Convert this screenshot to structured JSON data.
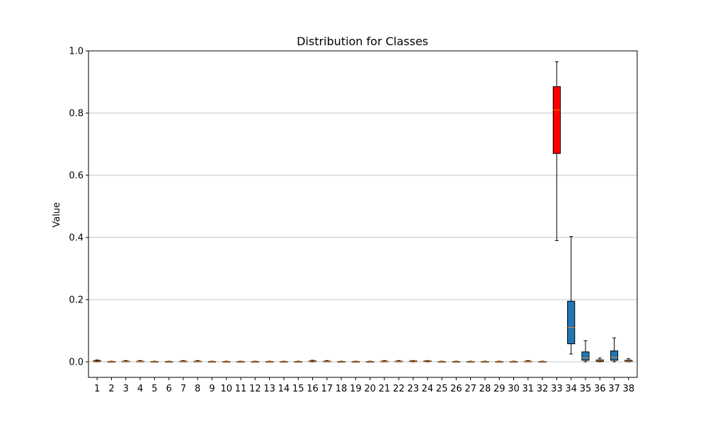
{
  "chart_data": {
    "type": "box",
    "title": "Distribution for Classes",
    "xlabel": "",
    "ylabel": "Value",
    "ylim": [
      -0.05,
      1.0
    ],
    "yticks": [
      0.0,
      0.2,
      0.4,
      0.6,
      0.8,
      1.0
    ],
    "y_grid": true,
    "highlight_color": "#ff0000",
    "box_color": "#1f77b4",
    "median_color": "#ff7f0e",
    "categories": [
      "1",
      "2",
      "3",
      "4",
      "5",
      "6",
      "7",
      "8",
      "9",
      "10",
      "11",
      "12",
      "13",
      "14",
      "15",
      "16",
      "17",
      "18",
      "19",
      "20",
      "21",
      "22",
      "23",
      "24",
      "25",
      "26",
      "27",
      "28",
      "29",
      "30",
      "31",
      "32",
      "33",
      "34",
      "35",
      "36",
      "37",
      "38"
    ],
    "boxes": [
      {
        "min": 0.0,
        "q1": 0.001,
        "median": 0.002,
        "q3": 0.004,
        "max": 0.006
      },
      {
        "min": 0.0,
        "q1": 0.0,
        "median": 0.0005,
        "q3": 0.001,
        "max": 0.002
      },
      {
        "min": 0.0,
        "q1": 0.0005,
        "median": 0.001,
        "q3": 0.002,
        "max": 0.004
      },
      {
        "min": 0.0,
        "q1": 0.0005,
        "median": 0.001,
        "q3": 0.002,
        "max": 0.004
      },
      {
        "min": 0.0,
        "q1": 0.0,
        "median": 0.0005,
        "q3": 0.001,
        "max": 0.002
      },
      {
        "min": 0.0,
        "q1": 0.0,
        "median": 0.0005,
        "q3": 0.001,
        "max": 0.002
      },
      {
        "min": 0.0,
        "q1": 0.0005,
        "median": 0.001,
        "q3": 0.002,
        "max": 0.004
      },
      {
        "min": 0.0,
        "q1": 0.0005,
        "median": 0.001,
        "q3": 0.002,
        "max": 0.004
      },
      {
        "min": 0.0,
        "q1": 0.0,
        "median": 0.0005,
        "q3": 0.001,
        "max": 0.002
      },
      {
        "min": 0.0,
        "q1": 0.0,
        "median": 0.0005,
        "q3": 0.001,
        "max": 0.002
      },
      {
        "min": 0.0,
        "q1": 0.0,
        "median": 0.0005,
        "q3": 0.001,
        "max": 0.002
      },
      {
        "min": 0.0,
        "q1": 0.0,
        "median": 0.0005,
        "q3": 0.001,
        "max": 0.002
      },
      {
        "min": 0.0,
        "q1": 0.0,
        "median": 0.0005,
        "q3": 0.001,
        "max": 0.002
      },
      {
        "min": 0.0,
        "q1": 0.0,
        "median": 0.0005,
        "q3": 0.001,
        "max": 0.002
      },
      {
        "min": 0.0,
        "q1": 0.0,
        "median": 0.0005,
        "q3": 0.001,
        "max": 0.002
      },
      {
        "min": 0.0,
        "q1": 0.001,
        "median": 0.002,
        "q3": 0.003,
        "max": 0.005
      },
      {
        "min": 0.0,
        "q1": 0.0005,
        "median": 0.001,
        "q3": 0.002,
        "max": 0.004
      },
      {
        "min": 0.0,
        "q1": 0.0,
        "median": 0.0005,
        "q3": 0.001,
        "max": 0.002
      },
      {
        "min": 0.0,
        "q1": 0.0,
        "median": 0.0005,
        "q3": 0.001,
        "max": 0.002
      },
      {
        "min": 0.0,
        "q1": 0.0,
        "median": 0.0005,
        "q3": 0.001,
        "max": 0.002
      },
      {
        "min": 0.0,
        "q1": 0.0005,
        "median": 0.001,
        "q3": 0.002,
        "max": 0.004
      },
      {
        "min": 0.0,
        "q1": 0.0005,
        "median": 0.001,
        "q3": 0.002,
        "max": 0.004
      },
      {
        "min": 0.0,
        "q1": 0.001,
        "median": 0.002,
        "q3": 0.003,
        "max": 0.004
      },
      {
        "min": 0.0,
        "q1": 0.001,
        "median": 0.002,
        "q3": 0.003,
        "max": 0.004
      },
      {
        "min": 0.0,
        "q1": 0.0,
        "median": 0.0005,
        "q3": 0.001,
        "max": 0.002
      },
      {
        "min": 0.0,
        "q1": 0.0,
        "median": 0.0005,
        "q3": 0.001,
        "max": 0.002
      },
      {
        "min": 0.0,
        "q1": 0.0,
        "median": 0.0005,
        "q3": 0.001,
        "max": 0.002
      },
      {
        "min": 0.0,
        "q1": 0.0,
        "median": 0.0005,
        "q3": 0.001,
        "max": 0.002
      },
      {
        "min": 0.0,
        "q1": 0.0,
        "median": 0.0005,
        "q3": 0.001,
        "max": 0.002
      },
      {
        "min": 0.0,
        "q1": 0.0,
        "median": 0.0005,
        "q3": 0.001,
        "max": 0.002
      },
      {
        "min": 0.0,
        "q1": 0.0005,
        "median": 0.001,
        "q3": 0.002,
        "max": 0.004
      },
      {
        "min": 0.0,
        "q1": 0.0,
        "median": 0.0005,
        "q3": 0.001,
        "max": 0.002
      },
      {
        "min": 0.39,
        "q1": 0.67,
        "median": 0.81,
        "q3": 0.885,
        "max": 0.965,
        "highlight": true
      },
      {
        "min": 0.025,
        "q1": 0.058,
        "median": 0.11,
        "q3": 0.195,
        "max": 0.403
      },
      {
        "min": 0.0,
        "q1": 0.005,
        "median": 0.012,
        "q3": 0.032,
        "max": 0.068
      },
      {
        "min": 0.0,
        "q1": 0.001,
        "median": 0.003,
        "q3": 0.006,
        "max": 0.012
      },
      {
        "min": 0.0,
        "q1": 0.005,
        "median": 0.014,
        "q3": 0.035,
        "max": 0.077
      },
      {
        "min": 0.0,
        "q1": 0.001,
        "median": 0.002,
        "q3": 0.005,
        "max": 0.01
      }
    ]
  }
}
